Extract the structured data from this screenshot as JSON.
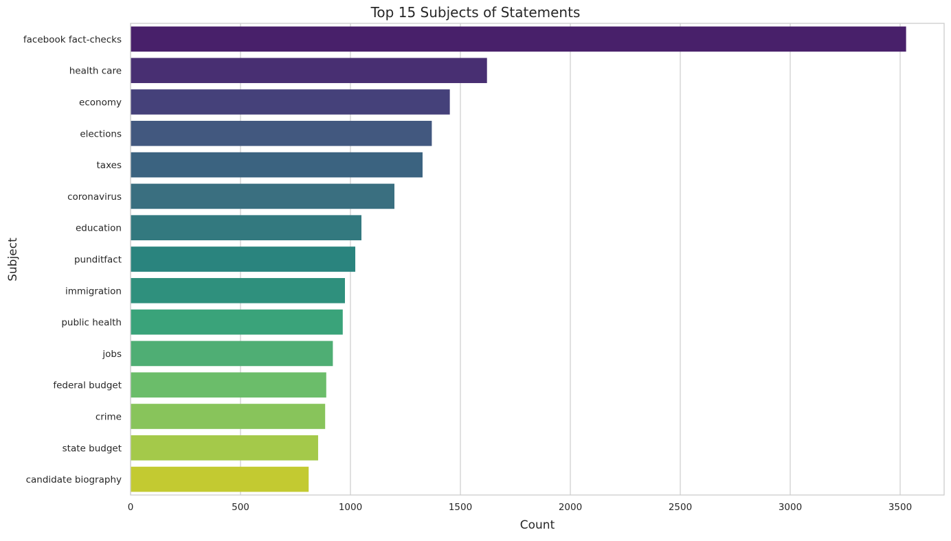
{
  "chart_data": {
    "type": "bar",
    "orientation": "horizontal",
    "title": "Top 15 Subjects of Statements",
    "xlabel": "Count",
    "ylabel": "Subject",
    "xlim": [
      0,
      3700
    ],
    "xticks": [
      0,
      500,
      1000,
      1500,
      2000,
      2500,
      3000,
      3500
    ],
    "grid": "vertical",
    "categories": [
      "facebook fact-checks",
      "health care",
      "economy",
      "elections",
      "taxes",
      "coronavirus",
      "education",
      "punditfact",
      "immigration",
      "public health",
      "jobs",
      "federal budget",
      "crime",
      "state budget",
      "candidate biography"
    ],
    "values": [
      3527,
      1621,
      1452,
      1370,
      1328,
      1200,
      1050,
      1022,
      975,
      965,
      920,
      890,
      885,
      853,
      810
    ],
    "colors": [
      "#48206a",
      "#482f72",
      "#45417a",
      "#42587f",
      "#3b6380",
      "#3a6f80",
      "#33797f",
      "#2a847e",
      "#2f907d",
      "#3aa37a",
      "#4fae74",
      "#6bbd6a",
      "#88c45b",
      "#a4c94a",
      "#c3ca31"
    ]
  }
}
